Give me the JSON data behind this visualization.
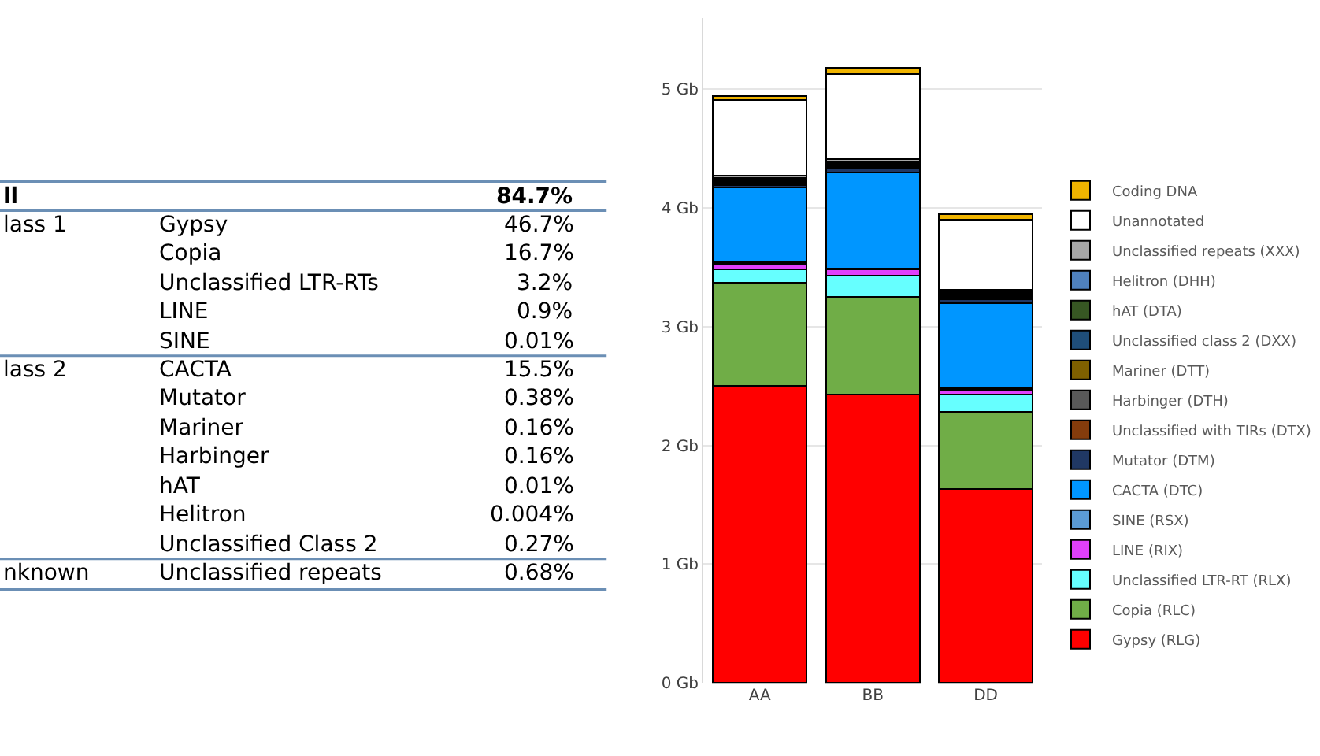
{
  "chart_data": [
    {
      "type": "other",
      "y2_categories": [
        "ll",
        "lass 1",
        null,
        null,
        null,
        null,
        "lass 2",
        null,
        null,
        null,
        null,
        null,
        null,
        "nknown"
      ],
      "categories": [
        null,
        "Gypsy",
        "Copia",
        "Unclassified LTR-RTs",
        "LINE",
        "SINE",
        "CACTA",
        "Mutator",
        "Mariner",
        "Harbinger",
        "hAT",
        "Helitron",
        "Unclassified Class 2",
        "Unclassified repeats"
      ],
      "annotations": [
        "84.7%",
        "46.7%",
        "16.7%",
        "3.2%",
        "0.9%",
        "0.01%",
        "15.5%",
        "0.38%",
        "0.16%",
        "0.16%",
        "0.01%",
        "0.004%",
        "0.27%",
        "0.68%"
      ]
    },
    {
      "type": "bar",
      "stacked": true,
      "categories": [
        "AA",
        "BB",
        "DD"
      ],
      "ylim": [
        0,
        5.6
      ],
      "yticks": [
        {
          "value": 0,
          "label": "0 Gb"
        },
        {
          "value": 1,
          "label": "1 Gb"
        },
        {
          "value": 2,
          "label": "2 Gb"
        },
        {
          "value": 3,
          "label": "3 Gb"
        },
        {
          "value": 4,
          "label": "4 Gb"
        },
        {
          "value": 5,
          "label": "5 Gb"
        }
      ],
      "grid": "y",
      "legend": "right",
      "series": [
        {
          "name": "Gypsy (RLG)",
          "color": "#ff0000",
          "values": [
            2.5,
            2.43,
            1.63
          ]
        },
        {
          "name": "Copia (RLC)",
          "color": "#70ad47",
          "values": [
            0.87,
            0.82,
            0.65
          ]
        },
        {
          "name": "Unclassified LTR-RT (RLX)",
          "color": "#66ffff",
          "values": [
            0.11,
            0.18,
            0.15
          ]
        },
        {
          "name": "LINE (RIX)",
          "color": "#e040fb",
          "values": [
            0.05,
            0.05,
            0.04
          ]
        },
        {
          "name": "SINE (RSX)",
          "color": "#5b9bd5",
          "values": [
            0.01,
            0.01,
            0.01
          ]
        },
        {
          "name": "CACTA (DTC)",
          "color": "#0096ff",
          "values": [
            0.63,
            0.81,
            0.72
          ]
        },
        {
          "name": "Mutator (DTM)",
          "color": "#203864",
          "values": [
            0.02,
            0.03,
            0.03
          ]
        },
        {
          "name": "Unclassified with TIRs (DTX)",
          "color": "#843c0c",
          "values": [
            0.01,
            0.01,
            0.01
          ]
        },
        {
          "name": "Harbinger (DTH)",
          "color": "#595959",
          "values": [
            0.01,
            0.01,
            0.01
          ]
        },
        {
          "name": "Mariner (DTT)",
          "color": "#7f6000",
          "values": [
            0.01,
            0.01,
            0.01
          ]
        },
        {
          "name": "Unclassified class 2 (DXX)",
          "color": "#1f4e79",
          "values": [
            0.01,
            0.01,
            0.01
          ]
        },
        {
          "name": "hAT (DTA)",
          "color": "#375623",
          "values": [
            0.01,
            0.01,
            0.01
          ]
        },
        {
          "name": "Helitron (DHH)",
          "color": "#4f81bd",
          "values": [
            0.01,
            0.01,
            0.01
          ]
        },
        {
          "name": "Unclassified repeats (XXX)",
          "color": "#a6a6a6",
          "values": [
            0.02,
            0.02,
            0.02
          ]
        },
        {
          "name": "Unannotated",
          "color": "#ffffff",
          "values": [
            0.64,
            0.72,
            0.59
          ]
        },
        {
          "name": "Coding DNA",
          "color": "#f0b400",
          "values": [
            0.03,
            0.05,
            0.05
          ]
        }
      ]
    }
  ]
}
